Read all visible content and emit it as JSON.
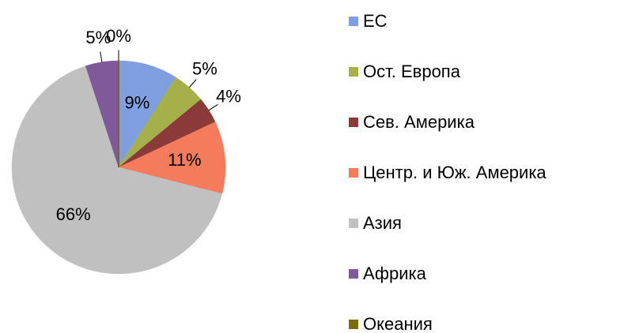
{
  "chart_data": {
    "type": "pie",
    "categories": [
      "ЕС",
      "Ост. Европа",
      "Сев. Америка",
      "Центр. и Юж. Америка",
      "Азия",
      "Африка",
      "Океания"
    ],
    "values": [
      9,
      5,
      4,
      11,
      66,
      5,
      0
    ],
    "value_labels": [
      "9%",
      "5%",
      "4%",
      "11%",
      "66%",
      "5%",
      "0%"
    ],
    "colors": [
      "#7f9fe0",
      "#a5b04a",
      "#8b3a3a",
      "#f47c5c",
      "#c0c0c0",
      "#7f5a9a",
      "#7a6a10"
    ],
    "legend": "right"
  }
}
